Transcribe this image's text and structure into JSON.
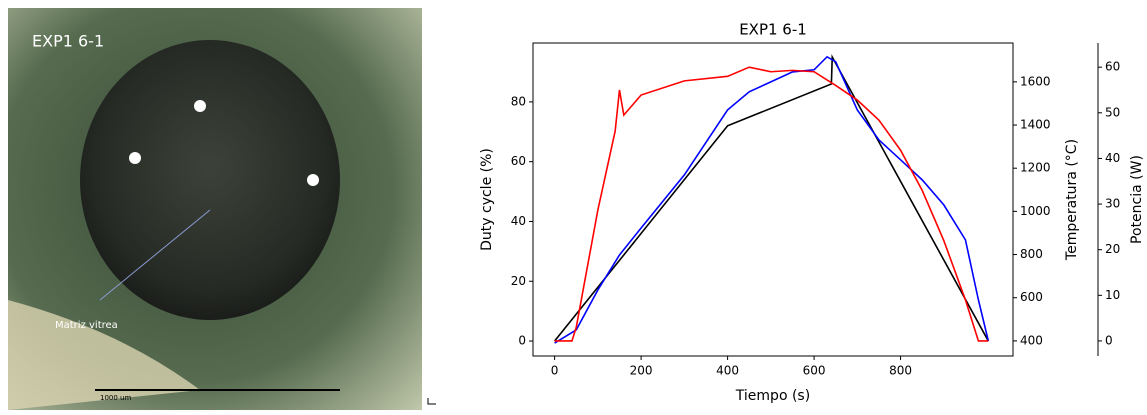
{
  "photo": {
    "title": "EXP1 6-1",
    "annotation": "Matriz vitrea",
    "scale_label": "1000 um"
  },
  "chart_data": {
    "type": "line",
    "title": "EXP1 6-1",
    "x_label": "Tiempo (s)",
    "y_label": "Duty cycle (%)",
    "y2_label": "Temperatura (°C)",
    "y3_label": "Potencia (W)",
    "xlim": [
      -50,
      1060
    ],
    "xticks": [
      0,
      200,
      400,
      600,
      800
    ],
    "ylim": [
      -5,
      99.7
    ],
    "yticks": [
      0,
      20,
      40,
      60,
      80
    ],
    "y2lim": [
      330,
      1780
    ],
    "y2ticks": [
      400,
      600,
      800,
      1000,
      1200,
      1400,
      1600
    ],
    "y3lim": [
      -3.3,
      65.3
    ],
    "y3ticks": [
      0,
      10,
      20,
      30,
      40,
      50,
      60
    ],
    "series": [
      {
        "color": "#000000",
        "axis": "y",
        "x": [
          0,
          400,
          640,
          642,
          1003
        ],
        "values": [
          0,
          72,
          86,
          95,
          0
        ]
      },
      {
        "color": "#0000ff",
        "axis": "y2",
        "x": [
          0,
          50,
          100,
          150,
          200,
          300,
          400,
          450,
          500,
          550,
          600,
          630,
          650,
          700,
          750,
          800,
          850,
          900,
          950,
          980,
          1003
        ],
        "values": [
          390,
          451,
          636,
          798,
          923,
          1169,
          1470,
          1554,
          1600,
          1646,
          1656,
          1716,
          1693,
          1470,
          1331,
          1239,
          1146,
          1030,
          868,
          590,
          400
        ]
      },
      {
        "color": "#ff0000",
        "axis": "y3",
        "x": [
          0,
          40,
          50,
          100,
          140,
          150,
          160,
          200,
          300,
          400,
          450,
          500,
          550,
          600,
          650,
          700,
          750,
          800,
          850,
          900,
          950,
          980,
          1003
        ],
        "values": [
          0,
          0,
          3,
          28.7,
          46,
          55,
          49.5,
          53.9,
          57,
          58,
          60,
          59,
          59.3,
          59,
          56,
          52.8,
          48.4,
          41.8,
          33,
          22,
          9,
          0,
          0
        ]
      }
    ]
  }
}
